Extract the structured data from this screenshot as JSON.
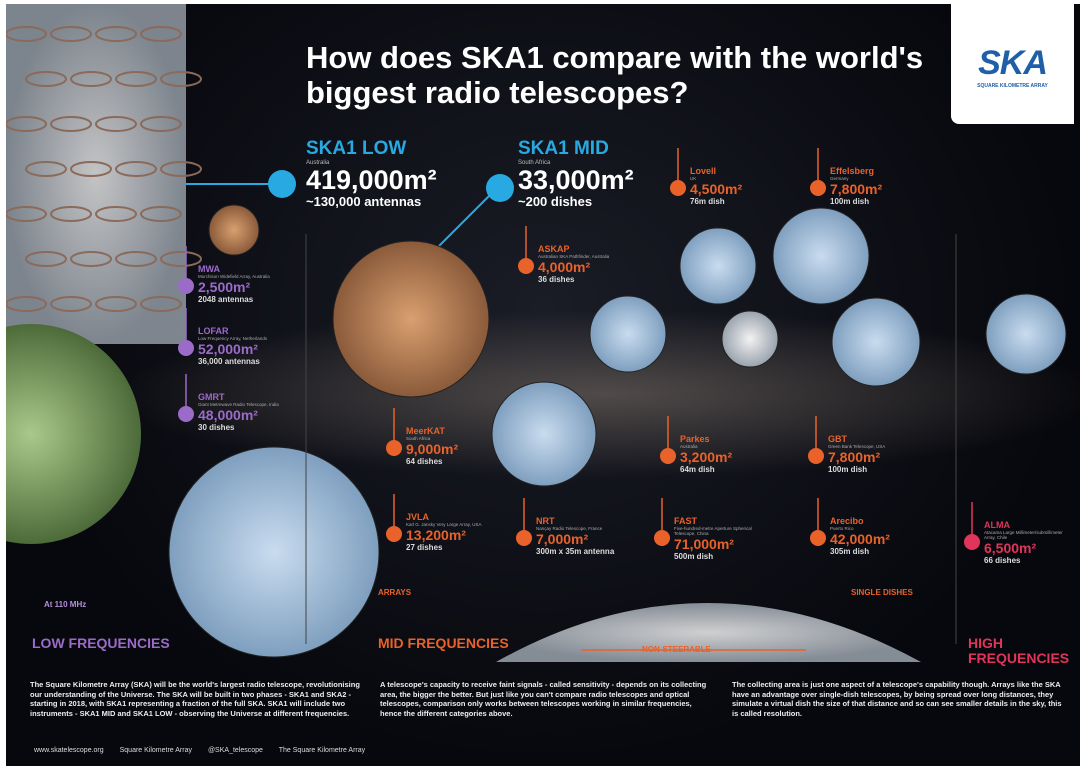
{
  "header": {
    "title": "How does SKA1 compare with the world's biggest radio telescopes?"
  },
  "logo": {
    "text": "SKA",
    "subtitle": "SQUARE KILOMETRE ARRAY"
  },
  "ska1_low": {
    "name": "SKA1 LOW",
    "location": "Australia",
    "area": "419,000m²",
    "detail": "~130,000 antennas"
  },
  "ska1_mid": {
    "name": "SKA1 MID",
    "location": "South Africa",
    "area": "33,000m²",
    "detail": "~200 dishes"
  },
  "telescopes": [
    {
      "name": "MWA",
      "subtitle": "Murchison Widefield Array, Australia",
      "area": "2,500m²",
      "detail": "2048 antennas"
    },
    {
      "name": "LOFAR",
      "subtitle": "Low Frequency Array, Netherlands",
      "area": "52,000m²",
      "detail": "36,000 antennas"
    },
    {
      "name": "GMRT",
      "subtitle": "Giant Metrewave Radio Telescope, India",
      "area": "48,000m²",
      "detail": "30 dishes"
    },
    {
      "name": "MeerKAT",
      "subtitle": "South Africa",
      "area": "9,000m²",
      "detail": "64 dishes"
    },
    {
      "name": "JVLA",
      "subtitle": "Karl G. Jansky Very Large Array, USA",
      "area": "13,200m²",
      "detail": "27 dishes"
    },
    {
      "name": "ASKAP",
      "subtitle": "Australian SKA Pathfinder, Australia",
      "area": "4,000m²",
      "detail": "36 dishes"
    },
    {
      "name": "Lovell",
      "subtitle": "UK",
      "area": "4,500m²",
      "detail": "76m dish"
    },
    {
      "name": "Effelsberg",
      "subtitle": "Germany",
      "area": "7,800m²",
      "detail": "100m dish"
    },
    {
      "name": "Parkes",
      "subtitle": "Australia",
      "area": "3,200m²",
      "detail": "64m dish"
    },
    {
      "name": "GBT",
      "subtitle": "Green Bank Telescope, USA",
      "area": "7,800m²",
      "detail": "100m dish"
    },
    {
      "name": "NRT",
      "subtitle": "Nançay Radio Telescope, France",
      "area": "7,000m²",
      "detail": "300m x 35m antenna"
    },
    {
      "name": "FAST",
      "subtitle": "Five-hundred-metre Aperture Spherical Telescope, China",
      "area": "71,000m²",
      "detail": "500m dish"
    },
    {
      "name": "Arecibo",
      "subtitle": "Puerto Rico",
      "area": "42,000m²",
      "detail": "305m dish"
    },
    {
      "name": "ALMA",
      "subtitle": "Atacama Large Millimeter/submillimeter Array, Chile",
      "area": "6,500m²",
      "detail": "66 dishes"
    }
  ],
  "categories": {
    "low": "LOW FREQUENCIES",
    "mid": "MID FREQUENCIES",
    "high": "HIGH FREQUENCIES",
    "arrays": "ARRAYS",
    "single_dishes": "SINGLE DISHES",
    "non_steerable": "NON-STEERABLE",
    "note": "At 110 MHz"
  },
  "footer": {
    "paragraphs": [
      "The Square Kilometre Array (SKA) will be the world's largest radio telescope, revolutionising our understanding of the Universe. The SKA will be built in two phases - SKA1 and SKA2 - starting in 2018, with SKA1 representing a fraction of the full SKA. SKA1 will include two instruments - SKA1 MID and SKA1 LOW - observing the Universe at different frequencies.",
      "A telescope's capacity to receive faint signals - called sensitivity - depends on its collecting area, the bigger the better. But just like you can't compare radio telescopes and optical telescopes, comparison only works between telescopes working in similar frequencies, hence the different categories above.",
      "The collecting area is just one aspect of a telescope's capability though. Arrays like the SKA have an advantage over single-dish telescopes, by being spread over long distances, they simulate a virtual dish the size of that distance and so can see smaller details in the sky, this is called resolution."
    ],
    "links": [
      "www.skatelescope.org",
      "Square Kilometre Array",
      "@SKA_telescope",
      "The Square Kilometre Array"
    ]
  }
}
